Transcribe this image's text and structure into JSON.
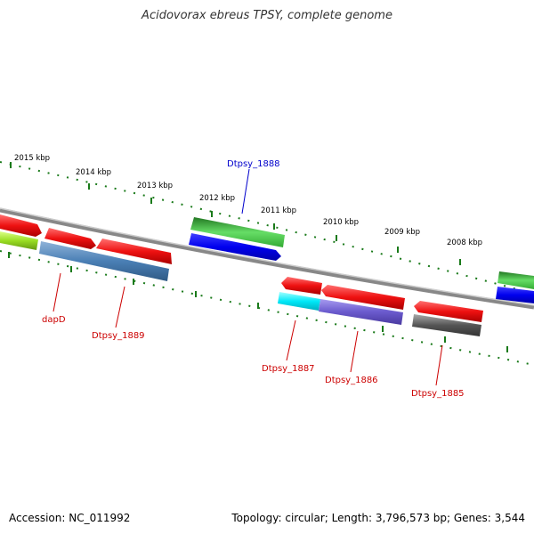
{
  "title": "Acidovorax ebreus TPSY, complete genome",
  "scale_labels": [
    "2015 kbp",
    "2014 kbp",
    "2013 kbp",
    "2012 kbp",
    "2011 kbp",
    "2010 kbp",
    "2009 kbp",
    "2008 kbp"
  ],
  "gene_labels": {
    "dtpsy_1888": "Dtpsy_1888",
    "dapd": "dapD",
    "dtpsy_1889": "Dtpsy_1889",
    "dtpsy_1887": "Dtpsy_1887",
    "dtpsy_1886": "Dtpsy_1886",
    "dtpsy_1885": "Dtpsy_1885"
  },
  "colors": {
    "cds_red": "#ee1111",
    "cds_green": "#33aa33",
    "cds_blue": "#1010ee",
    "cds_steelblue": "#4a7fb5",
    "cds_cyan": "#00e0f0",
    "cds_purple": "#6a5acd",
    "cds_gray": "#555555",
    "cds_yellowgreen": "#99dd22",
    "label_red": "#cc0000",
    "label_blue": "#0000cc",
    "backbone": "#888888",
    "tick": "#1a7a1a"
  },
  "footer": {
    "accession": "Accession: NC_011992",
    "summary": "Topology: circular; Length: 3,796,573 bp; Genes: 3,544"
  }
}
